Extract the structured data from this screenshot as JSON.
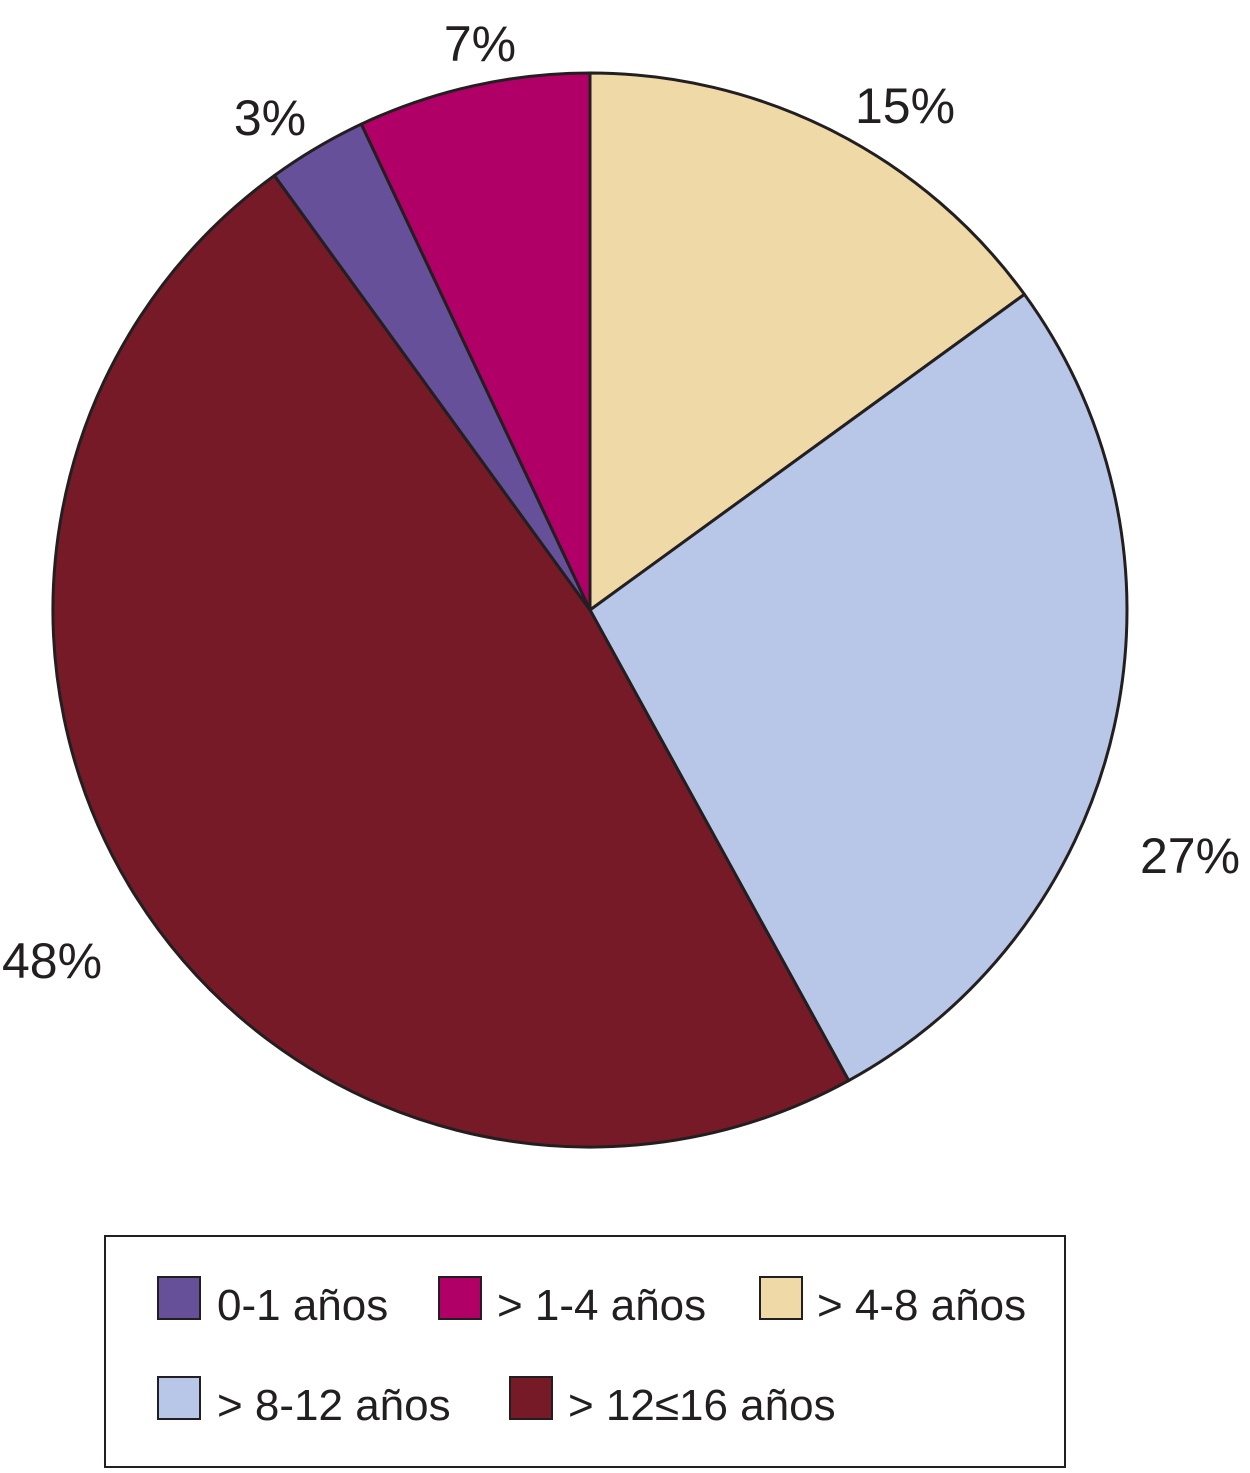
{
  "chart_data": {
    "type": "pie",
    "title": "",
    "slices": [
      {
        "label": "> 4-8 años",
        "value": 15,
        "display": "15%",
        "color": "#efd9a6"
      },
      {
        "label": "> 8-12 años",
        "value": 27,
        "display": "27%",
        "color": "#b8c7e7"
      },
      {
        "label": "> 12≤16 años",
        "value": 48,
        "display": "48%",
        "color": "#761a28"
      },
      {
        "label": "0-1 años",
        "value": 3,
        "display": "3%",
        "color": "#67509a"
      },
      {
        "label": "> 1-4 años",
        "value": 7,
        "display": "7%",
        "color": "#b00068"
      }
    ],
    "start": "12 o'clock",
    "direction": "clockwise",
    "legend": {
      "placement": "bottom",
      "items": [
        {
          "label": "0-1 años",
          "color": "#67509a"
        },
        {
          "label": "> 1-4 años",
          "color": "#b00068"
        },
        {
          "label": "> 4-8 años",
          "color": "#efd9a6"
        },
        {
          "label": "> 8-12 años",
          "color": "#b8c7e7"
        },
        {
          "label": "> 12≤16 años",
          "color": "#761a28"
        }
      ]
    }
  }
}
